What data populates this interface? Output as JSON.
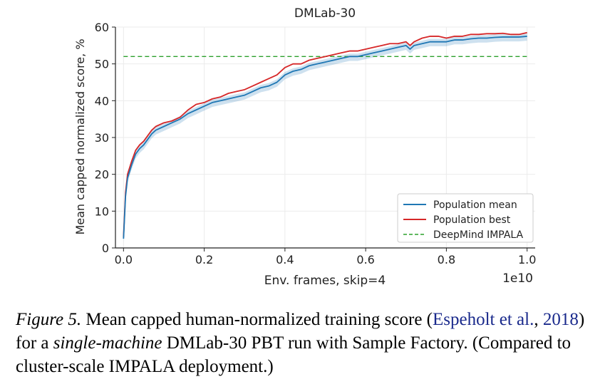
{
  "chart_data": {
    "type": "line",
    "title": "DMLab-30",
    "xlabel": "Env. frames, skip=4",
    "ylabel": "Mean capped normalized score, %",
    "x_offset_label": "1e10",
    "xlim": [
      -0.02,
      1.02
    ],
    "ylim": [
      0,
      60
    ],
    "x_ticks": [
      0.0,
      0.2,
      0.4,
      0.6,
      0.8,
      1.0
    ],
    "x_tick_labels": [
      "0.0",
      "0.2",
      "0.4",
      "0.6",
      "0.8",
      "1.0"
    ],
    "y_ticks": [
      0,
      10,
      20,
      30,
      40,
      50,
      60
    ],
    "y_tick_labels": [
      "0",
      "10",
      "20",
      "30",
      "40",
      "50",
      "60"
    ],
    "grid": true,
    "legend_position": "lower-right",
    "series": [
      {
        "name": "Population mean",
        "color": "#1f77b4",
        "style": "solid",
        "x": [
          0.0,
          0.005,
          0.01,
          0.02,
          0.03,
          0.04,
          0.05,
          0.06,
          0.07,
          0.08,
          0.1,
          0.12,
          0.14,
          0.16,
          0.18,
          0.2,
          0.22,
          0.24,
          0.26,
          0.28,
          0.3,
          0.32,
          0.34,
          0.36,
          0.38,
          0.4,
          0.42,
          0.44,
          0.46,
          0.48,
          0.5,
          0.52,
          0.54,
          0.56,
          0.58,
          0.6,
          0.62,
          0.64,
          0.66,
          0.68,
          0.7,
          0.71,
          0.72,
          0.74,
          0.76,
          0.78,
          0.8,
          0.82,
          0.84,
          0.86,
          0.88,
          0.9,
          0.92,
          0.94,
          0.96,
          0.98,
          1.0
        ],
        "y": [
          2.5,
          14,
          19,
          22.5,
          25.5,
          27,
          28,
          29.5,
          31,
          32,
          33,
          34,
          35,
          36.5,
          37.5,
          38.5,
          39.5,
          40,
          40.5,
          41,
          41.5,
          42.5,
          43.5,
          44,
          45,
          47,
          48,
          48.5,
          49.5,
          50,
          50.5,
          51,
          51.5,
          52,
          52,
          52.5,
          53,
          53.5,
          54,
          54.5,
          55,
          54,
          55,
          55.5,
          56,
          56,
          56,
          56.5,
          56.5,
          56.8,
          57,
          57,
          57.2,
          57.3,
          57.3,
          57.3,
          57.5
        ]
      },
      {
        "name": "Population best",
        "color": "#d62728",
        "style": "solid",
        "x": [
          0.0,
          0.005,
          0.01,
          0.02,
          0.03,
          0.04,
          0.05,
          0.06,
          0.07,
          0.08,
          0.1,
          0.12,
          0.14,
          0.16,
          0.18,
          0.2,
          0.22,
          0.24,
          0.26,
          0.28,
          0.3,
          0.32,
          0.34,
          0.36,
          0.38,
          0.4,
          0.42,
          0.44,
          0.46,
          0.48,
          0.5,
          0.52,
          0.54,
          0.56,
          0.58,
          0.6,
          0.62,
          0.64,
          0.66,
          0.68,
          0.7,
          0.71,
          0.72,
          0.74,
          0.76,
          0.78,
          0.8,
          0.82,
          0.84,
          0.86,
          0.88,
          0.9,
          0.92,
          0.94,
          0.96,
          0.98,
          1.0
        ],
        "y": [
          3,
          15,
          20,
          23.5,
          26.5,
          28,
          29,
          30.5,
          32,
          33,
          34,
          34.5,
          35.5,
          37.5,
          39,
          39.5,
          40.5,
          41,
          42,
          42.5,
          43,
          44,
          45,
          46,
          47,
          49,
          50,
          50,
          51,
          51.5,
          52,
          52.5,
          53,
          53.5,
          53.5,
          54,
          54.5,
          55,
          55.5,
          55.5,
          56,
          55,
          56,
          57,
          57.5,
          57.5,
          57,
          57.5,
          57.5,
          58,
          58,
          58.2,
          58.2,
          58.3,
          58,
          58,
          58.5
        ]
      },
      {
        "name": "DeepMind IMPALA",
        "color": "#2ca02c",
        "style": "dashed",
        "x": [
          0.0,
          1.0
        ],
        "y": [
          52,
          52
        ]
      }
    ]
  },
  "caption": {
    "figure_label": "Figure 5.",
    "text_1": " Mean capped human-normalized training score (",
    "citation_author": "Espeholt",
    "citation_etal": "et al.",
    "citation_sep": ", ",
    "citation_year": "2018",
    "text_2": ") for a ",
    "emphasis": "single-machine",
    "text_3": " DMLab-30 PBT run with Sample Factory. (Compared to cluster-scale IMPALA deployment.)"
  }
}
